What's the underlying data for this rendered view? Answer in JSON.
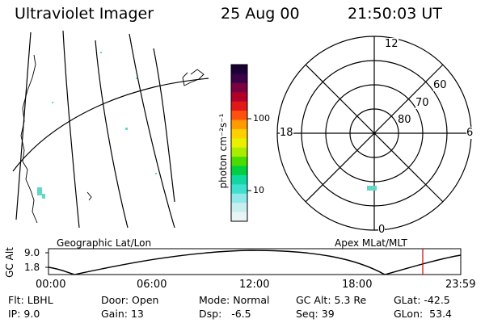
{
  "header": {
    "instrument": "Ultraviolet Imager",
    "date": "25 Aug 00",
    "time": "21:50:03 UT"
  },
  "colorbar": {
    "unit_label": "photon cm⁻²s⁻¹",
    "ticks": [
      "100",
      "10"
    ],
    "colors": [
      "#1a0033",
      "#3a0048",
      "#7a0040",
      "#b0002a",
      "#e01818",
      "#ff5010",
      "#ff9a00",
      "#ffd000",
      "#e8f000",
      "#a8ec00",
      "#48dc00",
      "#00d040",
      "#10d8a0",
      "#40e0d0",
      "#90e8e8",
      "#c8eef0",
      "#e8f4f6"
    ]
  },
  "polar_plot": {
    "mlt_labels": {
      "top": "12",
      "left": "18",
      "right": "6",
      "bottom": "0"
    },
    "lat_labels": [
      "60",
      "70",
      "80"
    ]
  },
  "map_labels": {
    "left": "Geographic Lat/Lon",
    "right": "Apex MLat/MLT"
  },
  "altitude_plot": {
    "ylabel": "GC Alt",
    "yticks": [
      "9.0",
      "1.8"
    ],
    "xticks": [
      "00:00",
      "06:00",
      "12:00",
      "18:00",
      "23:59"
    ],
    "marker_time": "21:50",
    "marker_color": "#d00000"
  },
  "status": {
    "row1": [
      {
        "key": "Flt:",
        "val": "LBHL"
      },
      {
        "key": "Door:",
        "val": "Open"
      },
      {
        "key": "Mode:",
        "val": "Normal"
      },
      {
        "key": "GC Alt:",
        "val": "5.3 Re"
      },
      {
        "key": "GLat:",
        "val": "-42.5"
      }
    ],
    "row2": [
      {
        "key": "IP:",
        "val": "9.0"
      },
      {
        "key": "Gain:",
        "val": "13"
      },
      {
        "key": "Dsp:",
        "val": "-6.5"
      },
      {
        "key": "Seq:",
        "val": "39"
      },
      {
        "key": "GLon:",
        "val": "53.4"
      }
    ]
  }
}
